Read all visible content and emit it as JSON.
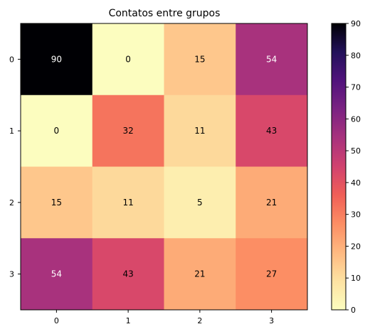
{
  "chart_data": {
    "type": "heatmap",
    "title": "Contatos entre grupos",
    "xlabel": "",
    "ylabel": "",
    "x_categories": [
      "0",
      "1",
      "2",
      "3"
    ],
    "y_categories": [
      "0",
      "1",
      "2",
      "3"
    ],
    "values": [
      [
        90,
        0,
        15,
        54
      ],
      [
        0,
        32,
        11,
        43
      ],
      [
        15,
        11,
        5,
        21
      ],
      [
        54,
        43,
        21,
        27
      ]
    ],
    "colormap": "magma_r",
    "vmin": 0,
    "vmax": 90,
    "colorbar_ticks": [
      "0",
      "10",
      "20",
      "30",
      "40",
      "50",
      "60",
      "70",
      "80",
      "90"
    ],
    "colorbar_tick_values": [
      0,
      10,
      20,
      30,
      40,
      50,
      60,
      70,
      80,
      90
    ],
    "light_text_color": "#ffffff",
    "dark_text_color": "#000000",
    "colormap_stops": [
      [
        0.0,
        "#fcfdbf"
      ],
      [
        0.1,
        "#fde2a2"
      ],
      [
        0.2,
        "#feb981"
      ],
      [
        0.3,
        "#fc8e64"
      ],
      [
        0.4,
        "#f05f57"
      ],
      [
        0.5,
        "#d1426f"
      ],
      [
        0.6,
        "#a8327d"
      ],
      [
        0.7,
        "#7b2382"
      ],
      [
        0.8,
        "#51127c"
      ],
      [
        0.9,
        "#22115a"
      ],
      [
        1.0,
        "#000004"
      ]
    ]
  }
}
